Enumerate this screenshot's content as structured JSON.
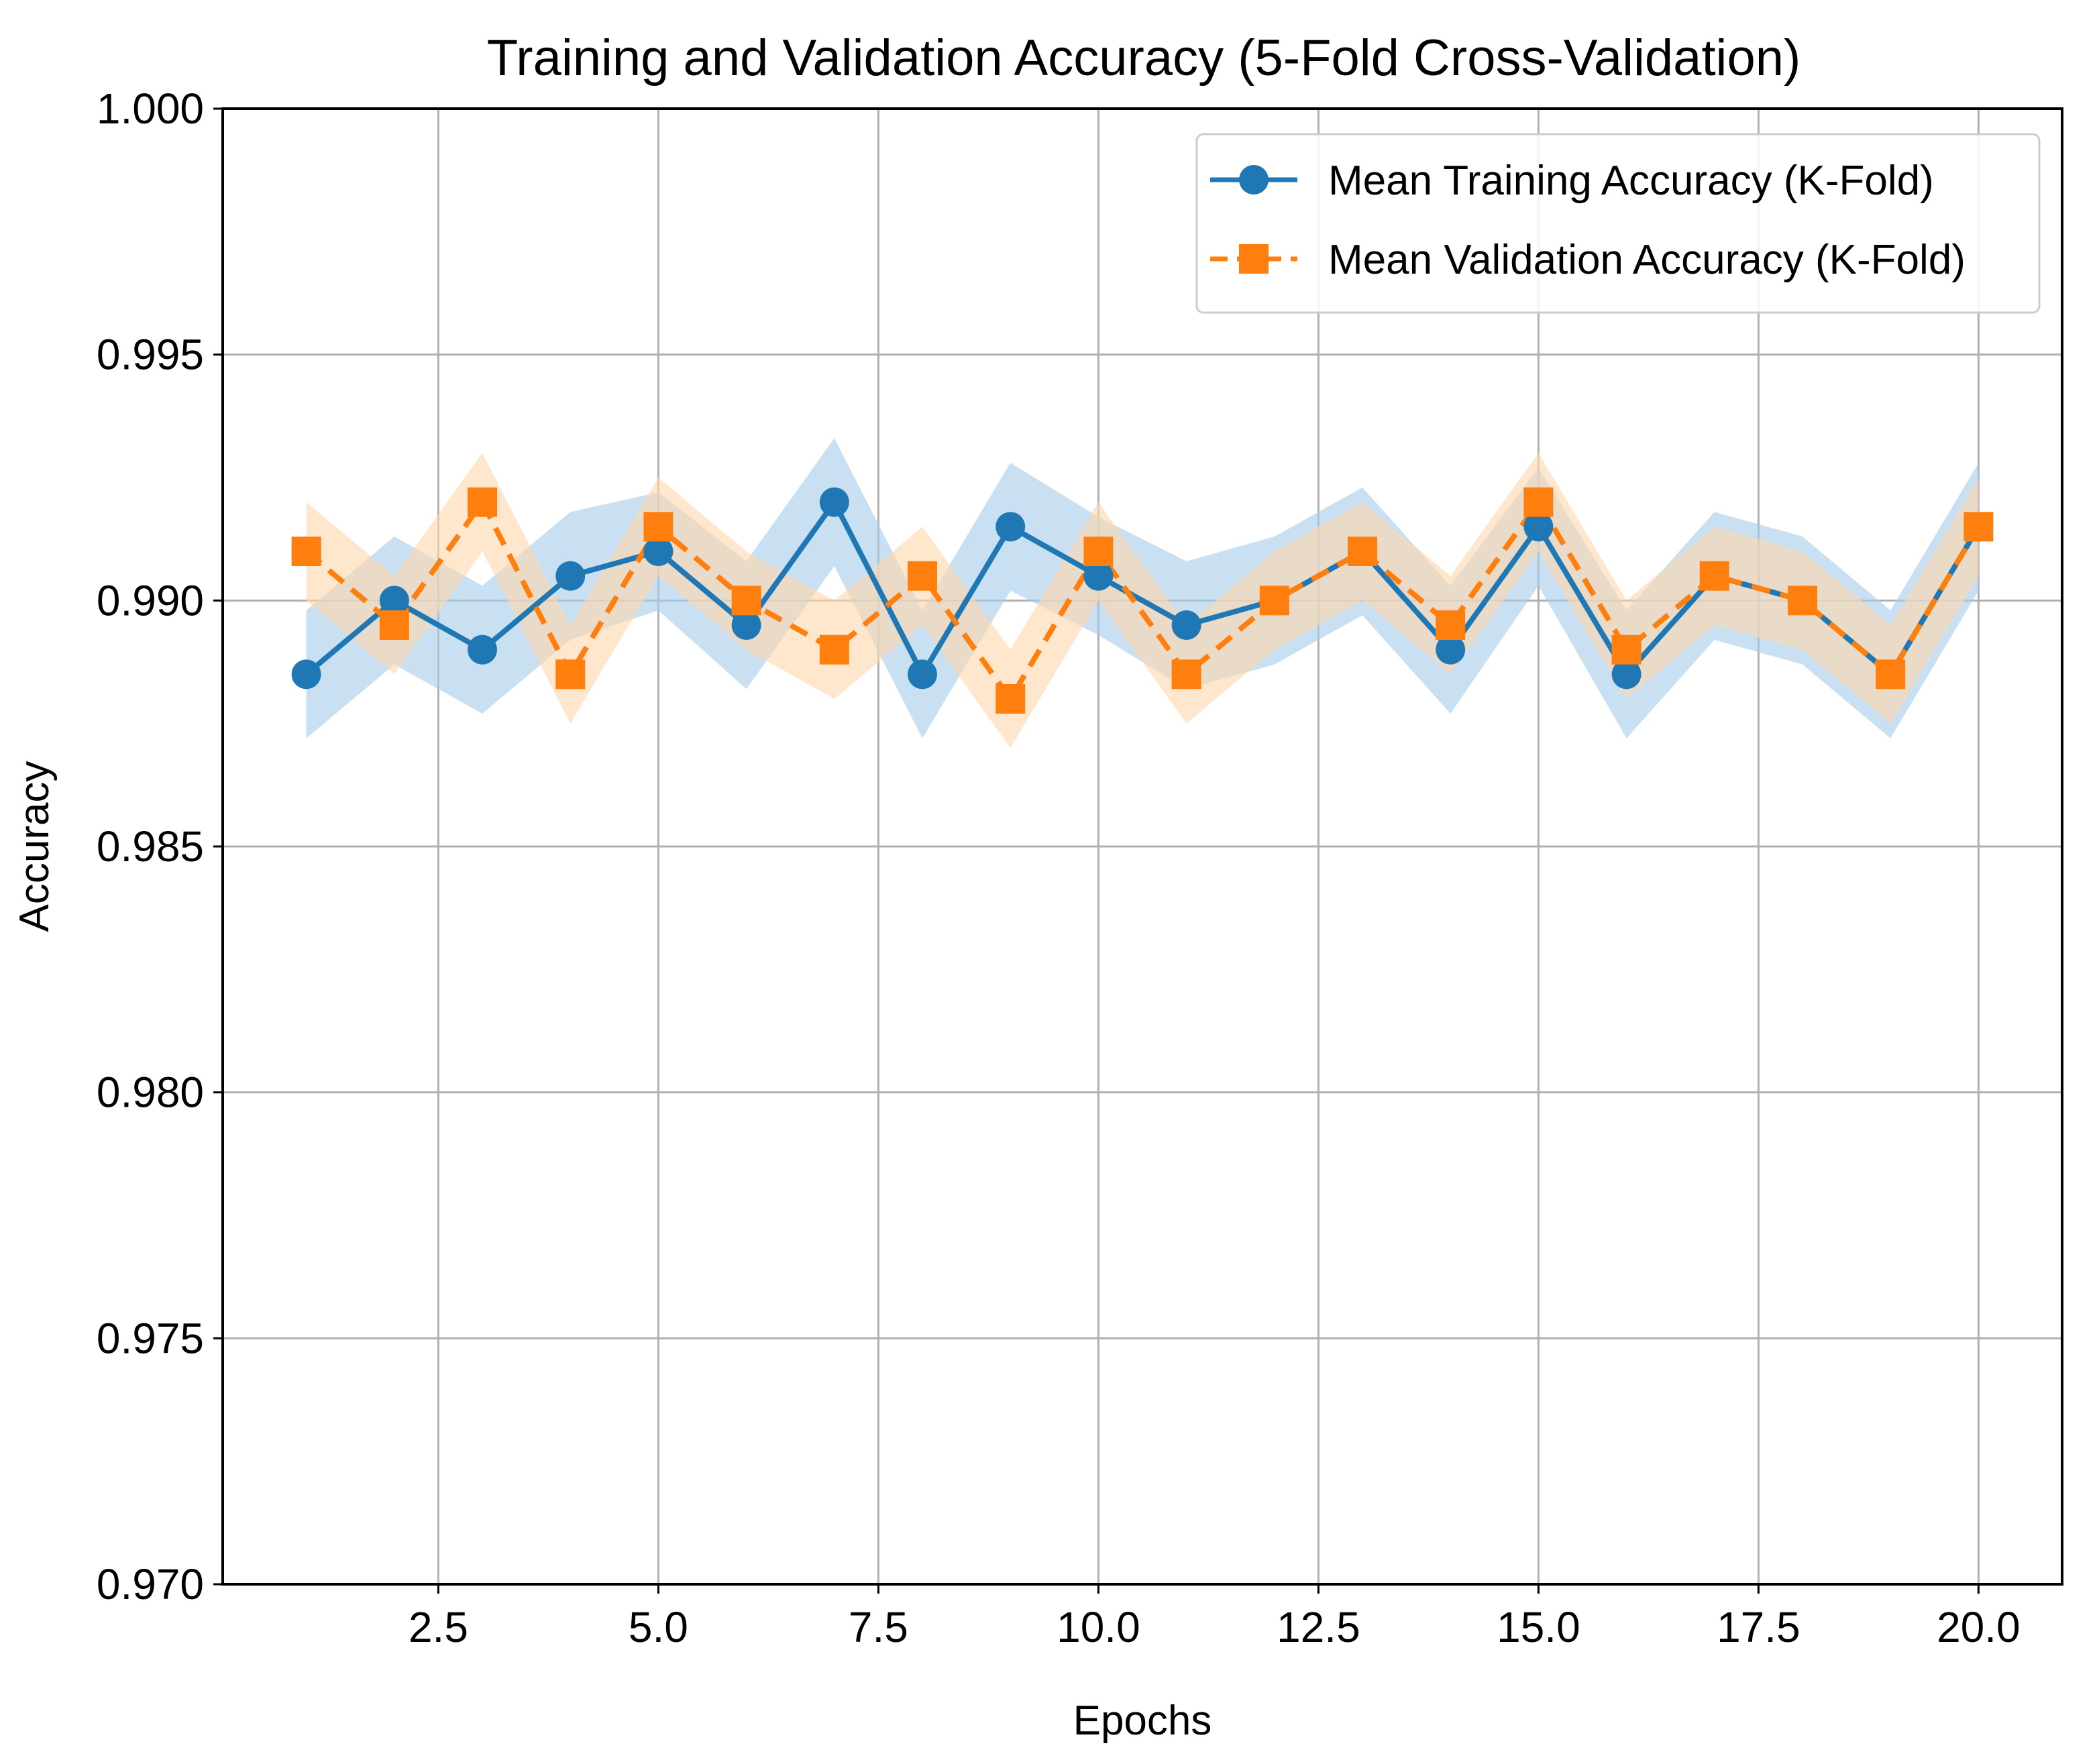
{
  "chart_data": {
    "type": "line",
    "title": "Training and Validation Accuracy (5-Fold Cross-Validation)",
    "xlabel": "Epochs",
    "ylabel": "Accuracy",
    "xlim": [
      0.05,
      20.95
    ],
    "ylim": [
      0.97,
      1.0
    ],
    "x_ticks": [
      2.5,
      5.0,
      7.5,
      10.0,
      12.5,
      15.0,
      17.5,
      20.0
    ],
    "x_tick_labels": [
      "2.5",
      "5.0",
      "7.5",
      "10.0",
      "12.5",
      "15.0",
      "17.5",
      "20.0"
    ],
    "y_ticks": [
      0.97,
      0.975,
      0.98,
      0.985,
      0.99,
      0.995,
      1.0
    ],
    "y_tick_labels": [
      "0.970",
      "0.975",
      "0.980",
      "0.985",
      "0.990",
      "0.995",
      "1.000"
    ],
    "grid": true,
    "legend_position": "top-right",
    "x": [
      1,
      2,
      3,
      4,
      5,
      6,
      7,
      8,
      9,
      10,
      11,
      12,
      13,
      14,
      15,
      16,
      17,
      18,
      19,
      20
    ],
    "series": [
      {
        "name": "Mean Training Accuracy (K-Fold)",
        "color": "#1f77b4",
        "band_color": "#a6cde8",
        "marker": "circle",
        "line_style": "solid",
        "values": [
          0.9885,
          0.99,
          0.989,
          0.9905,
          0.991,
          0.9895,
          0.992,
          0.9885,
          0.9915,
          0.9905,
          0.9895,
          0.99,
          0.991,
          0.989,
          0.9915,
          0.9885,
          0.9905,
          0.99,
          0.9885,
          0.9915
        ],
        "band_half_width": [
          0.0013,
          0.0013,
          0.0013,
          0.0013,
          0.0012,
          0.0013,
          0.0013,
          0.0013,
          0.0013,
          0.0012,
          0.0013,
          0.0013,
          0.0013,
          0.0013,
          0.0012,
          0.0013,
          0.0013,
          0.0013,
          0.0013,
          0.0013
        ]
      },
      {
        "name": "Mean Validation Accuracy (K-Fold)",
        "color": "#ff7f0e",
        "band_color": "#ffd8b0",
        "marker": "square",
        "line_style": "dashed",
        "values": [
          0.991,
          0.9895,
          0.992,
          0.9885,
          0.9915,
          0.99,
          0.989,
          0.9905,
          0.988,
          0.991,
          0.9885,
          0.99,
          0.991,
          0.9895,
          0.992,
          0.989,
          0.9905,
          0.99,
          0.9885,
          0.9915
        ],
        "band_half_width": [
          0.001,
          0.001,
          0.001,
          0.001,
          0.001,
          0.001,
          0.001,
          0.001,
          0.001,
          0.001,
          0.001,
          0.001,
          0.001,
          0.001,
          0.001,
          0.001,
          0.001,
          0.001,
          0.001,
          0.001
        ]
      }
    ]
  }
}
